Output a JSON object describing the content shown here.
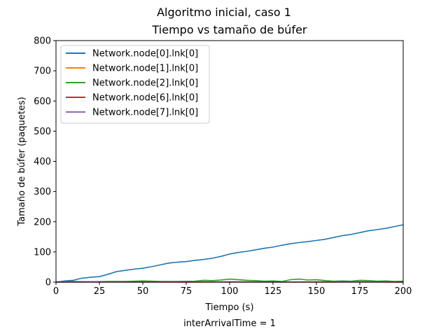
{
  "figure": {
    "suptitle": "Algoritmo inicial, caso 1",
    "footnote": "interArrivalTime = 1"
  },
  "chart_data": {
    "type": "line",
    "title": "Tiempo vs tamaño de búfer",
    "xlabel": "Tiempo (s)",
    "ylabel": "Tamaño de búfer (paquetes)",
    "xlim": [
      0,
      200
    ],
    "ylim": [
      0,
      800
    ],
    "xticks": [
      0,
      25,
      50,
      75,
      100,
      125,
      150,
      175,
      200
    ],
    "yticks": [
      0,
      100,
      200,
      300,
      400,
      500,
      600,
      700,
      800
    ],
    "grid": false,
    "legend_position": "top-left",
    "series": [
      {
        "name": "Network.node[0].lnk[0]",
        "color": "#1f77b4",
        "x": [
          0,
          5,
          10,
          15,
          20,
          25,
          30,
          35,
          40,
          45,
          50,
          55,
          60,
          65,
          70,
          75,
          80,
          85,
          90,
          95,
          100,
          105,
          110,
          115,
          120,
          125,
          130,
          135,
          140,
          145,
          150,
          155,
          160,
          165,
          170,
          175,
          180,
          185,
          190,
          195,
          200
        ],
        "y": [
          0,
          4,
          6,
          13,
          16,
          18,
          26,
          35,
          39,
          43,
          46,
          51,
          57,
          63,
          66,
          68,
          72,
          75,
          79,
          85,
          93,
          98,
          102,
          107,
          112,
          116,
          122,
          127,
          131,
          134,
          138,
          142,
          148,
          154,
          158,
          164,
          170,
          174,
          178,
          184,
          190
        ]
      },
      {
        "name": "Network.node[1].lnk[0]",
        "color": "#ff7f0e",
        "x": [
          0,
          25,
          50,
          75,
          100,
          125,
          150,
          175,
          200
        ],
        "y": [
          0,
          1,
          1,
          0,
          1,
          1,
          0,
          1,
          0
        ]
      },
      {
        "name": "Network.node[2].lnk[0]",
        "color": "#2ca02c",
        "x": [
          0,
          10,
          20,
          30,
          40,
          50,
          55,
          60,
          70,
          80,
          85,
          90,
          95,
          100,
          105,
          110,
          115,
          120,
          125,
          130,
          135,
          140,
          145,
          150,
          155,
          160,
          165,
          170,
          175,
          180,
          185,
          190,
          195,
          200
        ],
        "y": [
          0,
          2,
          1,
          2,
          2,
          4,
          3,
          2,
          2,
          3,
          6,
          5,
          7,
          10,
          8,
          6,
          5,
          3,
          4,
          2,
          8,
          10,
          7,
          8,
          5,
          3,
          4,
          3,
          6,
          5,
          3,
          4,
          2,
          3
        ]
      },
      {
        "name": "Network.node[6].lnk[0]",
        "color": "#d62728",
        "x": [
          0,
          50,
          100,
          150,
          200
        ],
        "y": [
          0,
          0,
          0,
          0,
          0
        ]
      },
      {
        "name": "Network.node[7].lnk[0]",
        "color": "#9467bd",
        "x": [
          0,
          25,
          50,
          75,
          100,
          125,
          150,
          175,
          200
        ],
        "y": [
          1,
          1,
          0,
          1,
          1,
          0,
          1,
          1,
          0
        ]
      }
    ]
  }
}
